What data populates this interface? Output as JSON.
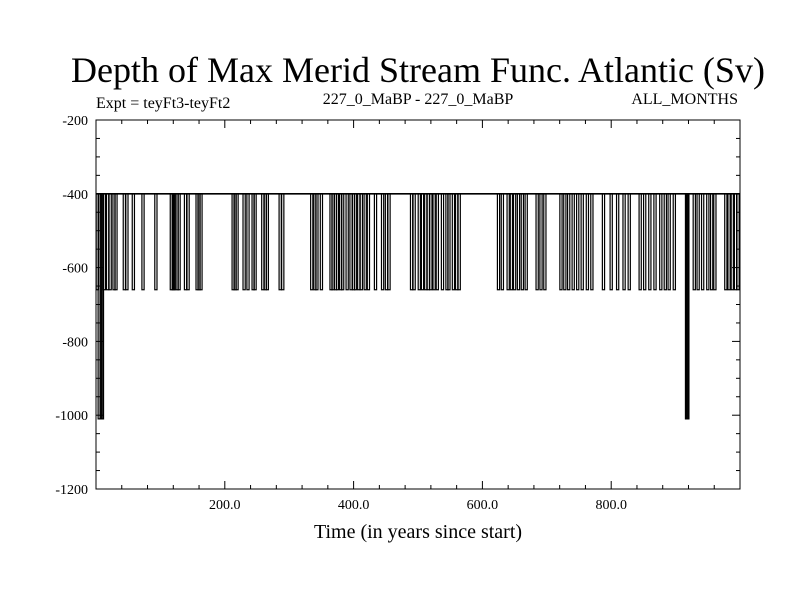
{
  "chart_data": {
    "type": "line",
    "title": "Depth of Max Merid Stream Func. Atlantic (Sv)",
    "subtitle_left": "Expt = teyFt3-teyFt2",
    "subtitle_center": "227_0_MaBP - 227_0_MaBP",
    "subtitle_right": "ALL_MONTHS",
    "xlabel": "Time (in years since start)",
    "ylabel": "",
    "xlim": [
      0,
      1000
    ],
    "ylim": [
      -1200,
      -200
    ],
    "x_ticks": [
      200,
      400,
      600,
      800
    ],
    "x_tick_labels": [
      "200.0",
      "400.0",
      "600.0",
      "800.0"
    ],
    "y_ticks": [
      -200,
      -400,
      -600,
      -800,
      -1000,
      -1200
    ],
    "y_tick_labels": [
      "-200",
      "-400",
      "-600",
      "-800",
      "-1000",
      "-1200"
    ],
    "baseline": -400,
    "series": [
      {
        "name": "depth",
        "baseline": -400,
        "excursions": [
          {
            "x": 2,
            "y": -660
          },
          {
            "x": 5,
            "y": -1010
          },
          {
            "x": 8,
            "y": -1010
          },
          {
            "x": 10,
            "y": -1010
          },
          {
            "x": 13,
            "y": -660
          },
          {
            "x": 18,
            "y": -660
          },
          {
            "x": 22,
            "y": -660
          },
          {
            "x": 28,
            "y": -660
          },
          {
            "x": 31,
            "y": -660
          },
          {
            "x": 44,
            "y": -660
          },
          {
            "x": 48,
            "y": -660
          },
          {
            "x": 58,
            "y": -660
          },
          {
            "x": 73,
            "y": -660
          },
          {
            "x": 93,
            "y": -660
          },
          {
            "x": 117,
            "y": -660
          },
          {
            "x": 120,
            "y": -660
          },
          {
            "x": 122,
            "y": -660
          },
          {
            "x": 126,
            "y": -660
          },
          {
            "x": 129,
            "y": -660
          },
          {
            "x": 139,
            "y": -660
          },
          {
            "x": 143,
            "y": -660
          },
          {
            "x": 157,
            "y": -660
          },
          {
            "x": 160,
            "y": -660
          },
          {
            "x": 163,
            "y": -660
          },
          {
            "x": 213,
            "y": -660
          },
          {
            "x": 216,
            "y": -660
          },
          {
            "x": 219,
            "y": -660
          },
          {
            "x": 230,
            "y": -660
          },
          {
            "x": 236,
            "y": -660
          },
          {
            "x": 244,
            "y": -660
          },
          {
            "x": 247,
            "y": -660
          },
          {
            "x": 259,
            "y": -660
          },
          {
            "x": 263,
            "y": -660
          },
          {
            "x": 266,
            "y": -660
          },
          {
            "x": 286,
            "y": -660
          },
          {
            "x": 290,
            "y": -660
          },
          {
            "x": 335,
            "y": -660
          },
          {
            "x": 340,
            "y": -660
          },
          {
            "x": 343,
            "y": -660
          },
          {
            "x": 350,
            "y": -660
          },
          {
            "x": 365,
            "y": -660
          },
          {
            "x": 368,
            "y": -660
          },
          {
            "x": 372,
            "y": -660
          },
          {
            "x": 375,
            "y": -660
          },
          {
            "x": 380,
            "y": -660
          },
          {
            "x": 383,
            "y": -660
          },
          {
            "x": 390,
            "y": -660
          },
          {
            "x": 396,
            "y": -660
          },
          {
            "x": 400,
            "y": -660
          },
          {
            "x": 403,
            "y": -660
          },
          {
            "x": 408,
            "y": -660
          },
          {
            "x": 412,
            "y": -660
          },
          {
            "x": 418,
            "y": -660
          },
          {
            "x": 423,
            "y": -660
          },
          {
            "x": 434,
            "y": -660
          },
          {
            "x": 445,
            "y": -660
          },
          {
            "x": 451,
            "y": -660
          },
          {
            "x": 455,
            "y": -660
          },
          {
            "x": 490,
            "y": -660
          },
          {
            "x": 494,
            "y": -660
          },
          {
            "x": 502,
            "y": -660
          },
          {
            "x": 507,
            "y": -660
          },
          {
            "x": 512,
            "y": -660
          },
          {
            "x": 516,
            "y": -660
          },
          {
            "x": 520,
            "y": -660
          },
          {
            "x": 525,
            "y": -660
          },
          {
            "x": 530,
            "y": -660
          },
          {
            "x": 538,
            "y": -660
          },
          {
            "x": 545,
            "y": -660
          },
          {
            "x": 548,
            "y": -660
          },
          {
            "x": 555,
            "y": -660
          },
          {
            "x": 560,
            "y": -660
          },
          {
            "x": 564,
            "y": -660
          },
          {
            "x": 625,
            "y": -660
          },
          {
            "x": 631,
            "y": -660
          },
          {
            "x": 640,
            "y": -660
          },
          {
            "x": 645,
            "y": -660
          },
          {
            "x": 650,
            "y": -660
          },
          {
            "x": 656,
            "y": -660
          },
          {
            "x": 662,
            "y": -660
          },
          {
            "x": 668,
            "y": -660
          },
          {
            "x": 685,
            "y": -660
          },
          {
            "x": 691,
            "y": -660
          },
          {
            "x": 697,
            "y": -660
          },
          {
            "x": 722,
            "y": -660
          },
          {
            "x": 728,
            "y": -660
          },
          {
            "x": 734,
            "y": -660
          },
          {
            "x": 741,
            "y": -660
          },
          {
            "x": 748,
            "y": -660
          },
          {
            "x": 755,
            "y": -660
          },
          {
            "x": 763,
            "y": -660
          },
          {
            "x": 770,
            "y": -660
          },
          {
            "x": 788,
            "y": -660
          },
          {
            "x": 800,
            "y": -660
          },
          {
            "x": 810,
            "y": -660
          },
          {
            "x": 820,
            "y": -660
          },
          {
            "x": 828,
            "y": -660
          },
          {
            "x": 845,
            "y": -660
          },
          {
            "x": 852,
            "y": -660
          },
          {
            "x": 860,
            "y": -660
          },
          {
            "x": 868,
            "y": -660
          },
          {
            "x": 877,
            "y": -660
          },
          {
            "x": 884,
            "y": -660
          },
          {
            "x": 890,
            "y": -660
          },
          {
            "x": 898,
            "y": -660
          },
          {
            "x": 917,
            "y": -1010
          },
          {
            "x": 918,
            "y": -1010
          },
          {
            "x": 919,
            "y": -1010
          },
          {
            "x": 929,
            "y": -660
          },
          {
            "x": 935,
            "y": -660
          },
          {
            "x": 942,
            "y": -660
          },
          {
            "x": 950,
            "y": -660
          },
          {
            "x": 956,
            "y": -660
          },
          {
            "x": 961,
            "y": -660
          },
          {
            "x": 978,
            "y": -660
          },
          {
            "x": 983,
            "y": -660
          },
          {
            "x": 988,
            "y": -660
          },
          {
            "x": 993,
            "y": -660
          },
          {
            "x": 997,
            "y": -660
          }
        ]
      }
    ]
  }
}
